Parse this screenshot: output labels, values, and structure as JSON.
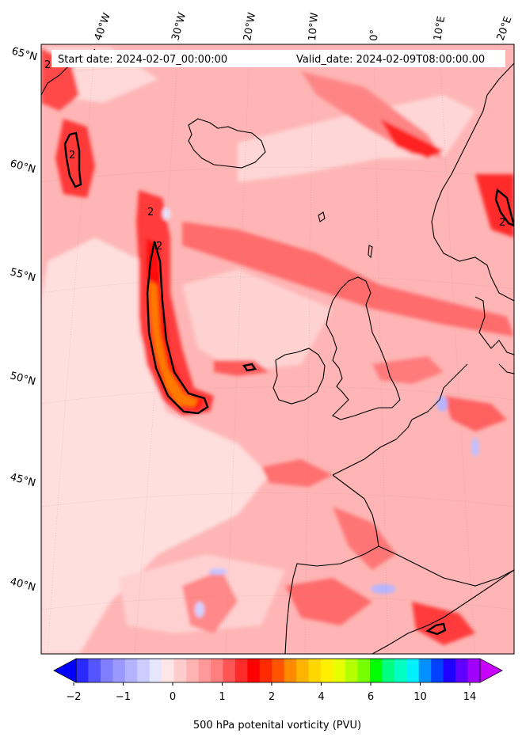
{
  "header": {
    "start_date": "Start date: 2024-02-07_00:00:00",
    "valid_date": "Valid_date: 2024-02-09T08:00:00.00"
  },
  "lon_labels": [
    "40°W",
    "30°W",
    "20°W",
    "10°W",
    "0°",
    "10°E",
    "20°E"
  ],
  "lat_labels": [
    "65°N",
    "60°N",
    "55°N",
    "50°N",
    "45°N",
    "40°N"
  ],
  "contour_labels": [
    "2",
    "2",
    "2",
    "2",
    "2"
  ],
  "colorbar": {
    "title": "500 hPa potenital vorticity (PVU)",
    "ticks": [
      "−2",
      "−1",
      "0",
      "1",
      "2",
      "4",
      "6",
      "10",
      "14"
    ],
    "colors": [
      "#0000ff",
      "#2a2aff",
      "#5555ff",
      "#7f7fff",
      "#9999ff",
      "#b3b3ff",
      "#ccccff",
      "#e6e6ff",
      "#ffe6e6",
      "#ffcccc",
      "#ffb3b3",
      "#ff9999",
      "#ff7f7f",
      "#ff5555",
      "#ff2a2a",
      "#ff0000",
      "#ff2a00",
      "#ff5500",
      "#ff8c00",
      "#ffb400",
      "#ffd700",
      "#fff000",
      "#e6ff00",
      "#b4ff00",
      "#78ff00",
      "#00ff00",
      "#00ff80",
      "#00ffc0",
      "#00f0ff",
      "#0090ff",
      "#0040ff",
      "#2000ff",
      "#6000ff",
      "#a000ff",
      "#c800ff"
    ]
  },
  "map_colors": {
    "background": "#ffb0b0",
    "pv_low": "#ffe8e8",
    "pv_mid": "#ff8080",
    "pv_high": "#ff1a1a",
    "pv_max": "#ff7a00",
    "negative": "#c8c8ff",
    "coast": "#000000"
  }
}
